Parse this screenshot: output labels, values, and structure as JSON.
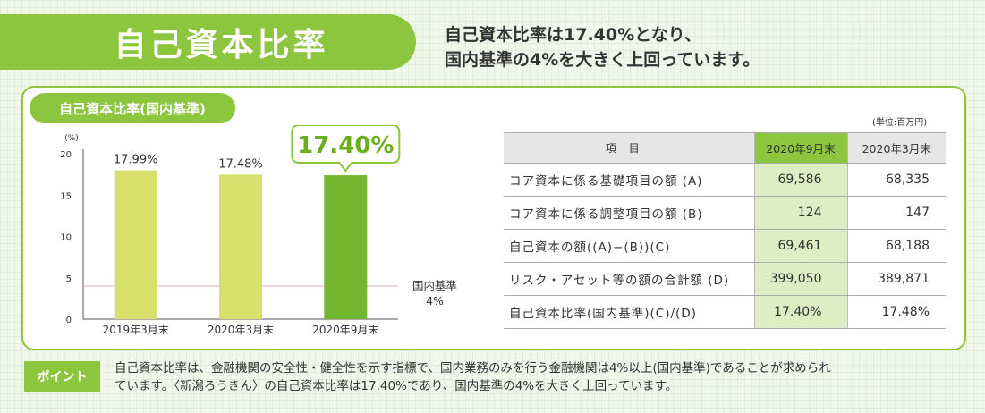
{
  "header": {
    "title": "自己資本比率",
    "headline_line1": "自己資本比率は17.40%となり、",
    "headline_line2": "国内基準の4%を大きく上回っています。"
  },
  "card": {
    "tab_label": "自己資本比率(国内基準)"
  },
  "chart_data": {
    "type": "bar",
    "categories": [
      "2019年3月末",
      "2020年3月末",
      "2020年9月末"
    ],
    "values": [
      17.99,
      17.48,
      17.4
    ],
    "data_labels": [
      "17.99%",
      "17.48%",
      "17.40%"
    ],
    "highlight_index": 2,
    "highlight_callout": "17.40%",
    "y_unit_label": "(%)",
    "ylim": [
      0,
      20
    ],
    "yticks": [
      0,
      5,
      10,
      15,
      20
    ],
    "reference_line": {
      "value": 4,
      "label_line1": "国内基準",
      "label_line2": "4%"
    },
    "colors": {
      "bar": "#d6e06a",
      "highlight": "#74b72e",
      "reference": "#e8a9b2",
      "callout": "#8cc63f",
      "callout_text": "#6aae1f"
    }
  },
  "table": {
    "unit_note": "(単位:百万円)",
    "headers": [
      "項目",
      "2020年9月末",
      "2020年3月末"
    ],
    "rows": [
      {
        "item": "コア資本に係る基礎項目の額 (A)",
        "a": "69,586",
        "b": "68,335"
      },
      {
        "item": "コア資本に係る調整項目の額 (B)",
        "a": "124",
        "b": "147"
      },
      {
        "item": "自己資本の額((A)−(B))(C)",
        "a": "69,461",
        "b": "68,188"
      },
      {
        "item": "リスク・アセット等の額の合計額 (D)",
        "a": "399,050",
        "b": "389,871"
      },
      {
        "item": "自己資本比率(国内基準)(C)/(D)",
        "a": "17.40%",
        "b": "17.48%"
      }
    ]
  },
  "point": {
    "badge": "ポイント",
    "line1": "自己資本比率は、金融機関の安全性・健全性を示す指標で、国内業務のみを行う金融機関は4%以上(国内基準)であることが求められ",
    "line2": "ています。〈新潟ろうきん〉の自己資本比率は17.40%であり、国内基準の4%を大きく上回っています。"
  }
}
